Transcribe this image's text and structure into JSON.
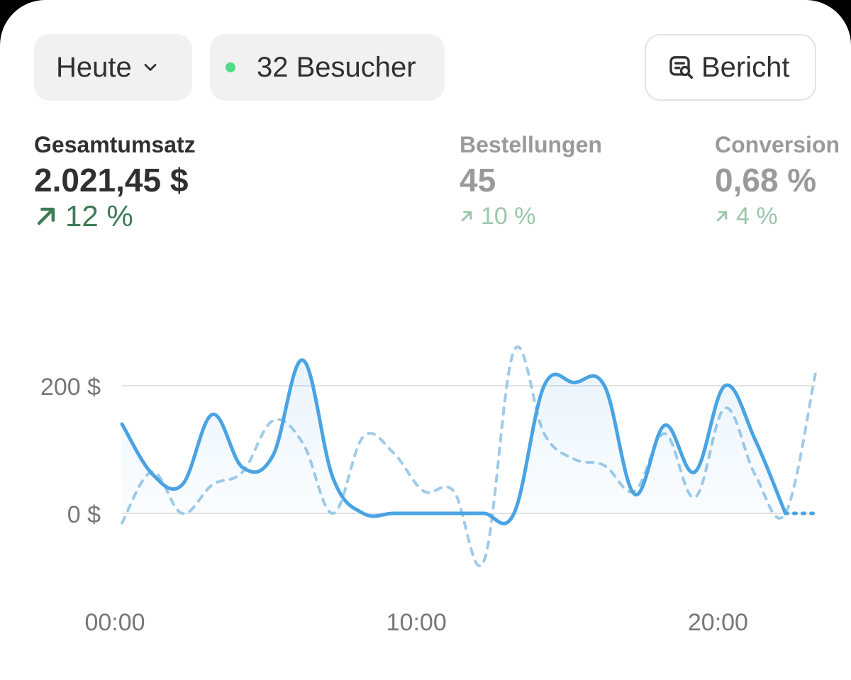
{
  "toolbar": {
    "range_label": "Heute",
    "visitors_label": "32 Besucher",
    "live_color": "#4fdc84",
    "report_label": "Bericht",
    "report_icon": "report-search-icon",
    "range_icon": "chevron-down-icon"
  },
  "metrics": [
    {
      "label": "Gesamtumsatz",
      "value": "2.021,45 $",
      "delta": "12 %",
      "delta_icon": "arrow-up-right-icon",
      "active": true
    },
    {
      "label": "Bestellungen",
      "value": "45",
      "delta": "10 %",
      "delta_icon": "arrow-up-right-icon",
      "active": false
    },
    {
      "label": "Conversion",
      "value": "0,68 %",
      "delta": "4 %",
      "delta_icon": "arrow-up-right-icon",
      "active": false
    }
  ],
  "chart_data": {
    "type": "line",
    "x_tick_labels": [
      "00:00",
      "10:00",
      "20:00"
    ],
    "y_tick_labels": [
      "200 $",
      "0 $"
    ],
    "x_ticks": [
      0,
      10,
      20
    ],
    "y_ticks": [
      200,
      0
    ],
    "xlim": [
      0,
      23
    ],
    "ylim": [
      -80,
      250
    ],
    "grid": true,
    "colors": {
      "current": "#4aa3e2",
      "comparison": "#9fcbe8",
      "grid": "#e3e3e3"
    },
    "series": [
      {
        "style": "solid",
        "x": [
          0,
          1,
          2,
          3,
          4,
          5,
          6,
          7,
          8,
          9,
          10,
          11,
          12,
          13,
          14,
          15,
          16,
          17,
          18,
          19,
          20,
          21,
          22,
          23
        ],
        "y": [
          140,
          62,
          45,
          155,
          72,
          90,
          240,
          55,
          0,
          0,
          0,
          0,
          0,
          0,
          200,
          205,
          200,
          30,
          138,
          65,
          200,
          115,
          0,
          0
        ],
        "dotted_after": 22
      },
      {
        "style": "dashed",
        "x": [
          0,
          1,
          2,
          3,
          4,
          5,
          6,
          7,
          8,
          9,
          10,
          11,
          12,
          13,
          14,
          15,
          16,
          17,
          18,
          19,
          20,
          21,
          22,
          23
        ],
        "y": [
          -15,
          65,
          0,
          45,
          65,
          145,
          110,
          0,
          120,
          95,
          35,
          35,
          -75,
          255,
          125,
          85,
          75,
          35,
          125,
          25,
          165,
          60,
          0,
          220
        ]
      }
    ]
  }
}
